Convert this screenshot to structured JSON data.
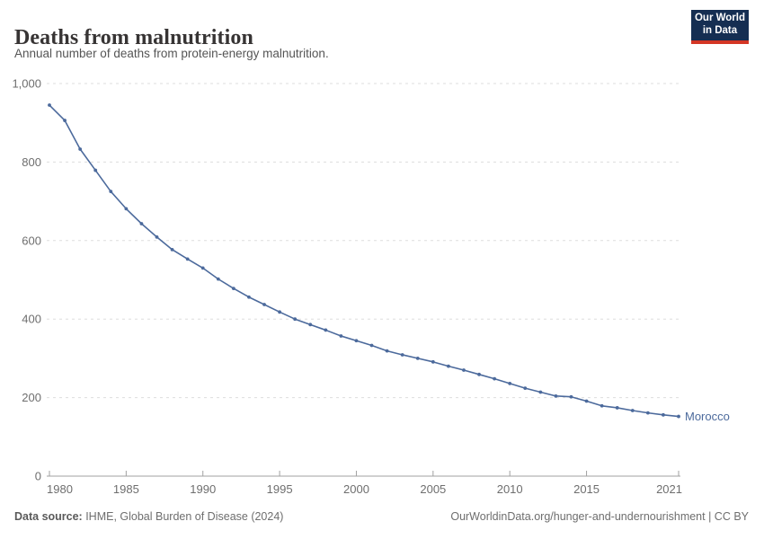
{
  "header": {
    "title": "Deaths from malnutrition",
    "subtitle": "Annual number of deaths from protein-energy malnutrition.",
    "logo": {
      "line1": "Our World",
      "line2": "in Data"
    }
  },
  "chart_data": {
    "type": "line",
    "title": "Deaths from malnutrition",
    "subtitle": "Annual number of deaths from protein-energy malnutrition.",
    "entity": "Morocco",
    "xlim": [
      1980,
      2021
    ],
    "ylim": [
      0,
      1000
    ],
    "grid": "horizontal-dashed",
    "legend_position": "end-of-line-label",
    "xticks": [
      1980,
      1985,
      1990,
      1995,
      2000,
      2005,
      2010,
      2015,
      2021
    ],
    "xtick_labels": [
      "1980",
      "1985",
      "1990",
      "1995",
      "2000",
      "2005",
      "2010",
      "2015",
      "2021"
    ],
    "yticks": [
      0,
      200,
      400,
      600,
      800,
      1000
    ],
    "ytick_labels": [
      "0",
      "200",
      "400",
      "600",
      "800",
      "1,000"
    ],
    "series": [
      {
        "name": "Morocco",
        "color": "#4c6a9c",
        "x": [
          1980,
          1981,
          1982,
          1983,
          1984,
          1985,
          1986,
          1987,
          1988,
          1989,
          1990,
          1991,
          1992,
          1993,
          1994,
          1995,
          1996,
          1997,
          1998,
          1999,
          2000,
          2001,
          2002,
          2003,
          2004,
          2005,
          2006,
          2007,
          2008,
          2009,
          2010,
          2011,
          2012,
          2013,
          2014,
          2015,
          2016,
          2017,
          2018,
          2019,
          2020,
          2021
        ],
        "values": [
          945,
          906,
          833,
          779,
          725,
          681,
          643,
          609,
          577,
          553,
          530,
          502,
          478,
          456,
          437,
          418,
          400,
          386,
          372,
          357,
          345,
          333,
          319,
          309,
          300,
          291,
          280,
          270,
          259,
          248,
          236,
          224,
          214,
          204,
          202,
          191,
          179,
          174,
          167,
          161,
          156,
          152
        ]
      }
    ]
  },
  "footer": {
    "source_label": "Data source:",
    "source_text": " IHME, Global Burden of Disease (2024)",
    "link_text": "OurWorldinData.org/hunger-and-undernourishment | CC BY"
  },
  "colors": {
    "line": "#4c6a9c",
    "logo_bg": "#152e52",
    "logo_red": "#d43625",
    "gridline": "#dddddd",
    "axis": "#a1a1a1",
    "text_gray": "#6e6e6e"
  }
}
